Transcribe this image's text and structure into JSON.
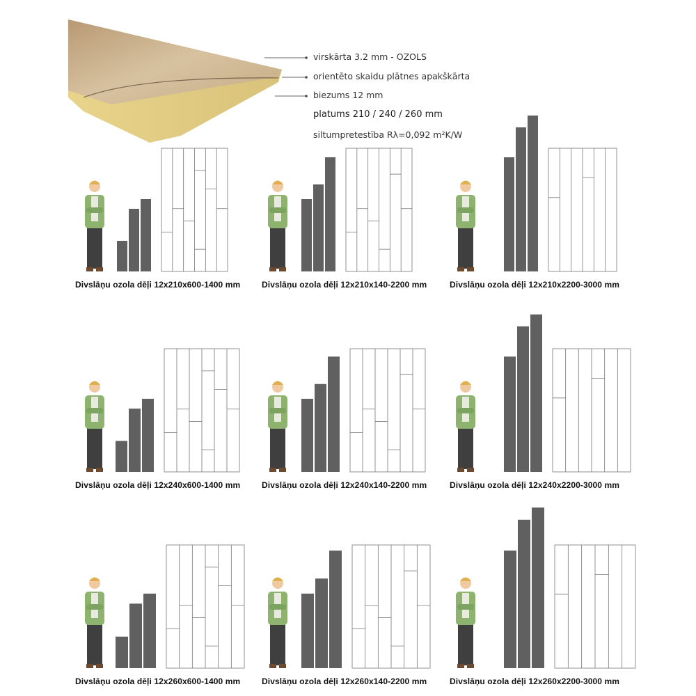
{
  "specs": {
    "layer_top": "virskārta 3.2 mm - OZOLS",
    "layer_bottom": "orientēto skaidu plātnes apakškārta",
    "thickness": "biezums 12 mm",
    "width": "platums 210 / 240 / 260  mm",
    "thermal": "siltumpretestība Rλ=0,092 m²K/W"
  },
  "colors": {
    "bars": "#606060",
    "jacket": "#8db36f",
    "pants": "#3f3f3f"
  },
  "panels": [
    {
      "caption": "Divslāņu ozola dēļi 12x210x600-1400 mm"
    },
    {
      "caption": "Divslāņu ozola dēļi 12x210x140-2200 mm"
    },
    {
      "caption": "Divslāņu ozola dēļi 12x210x2200-3000 mm"
    },
    {
      "caption": "Divslāņu ozola dēļi 12x240x600-1400 mm"
    },
    {
      "caption": "Divslāņu ozola dēļi 12x240x140-2200 mm"
    },
    {
      "caption": "Divslāņu ozola dēļi 12x240x2200-3000 mm"
    },
    {
      "caption": "Divslāņu ozola dēļi 12x260x600-1400 mm"
    },
    {
      "caption": "Divslāņu ozola dēļi 12x260x140-2200 mm"
    },
    {
      "caption": "Divslāņu ozola dēļi 12x260x2200-3000 mm"
    }
  ]
}
